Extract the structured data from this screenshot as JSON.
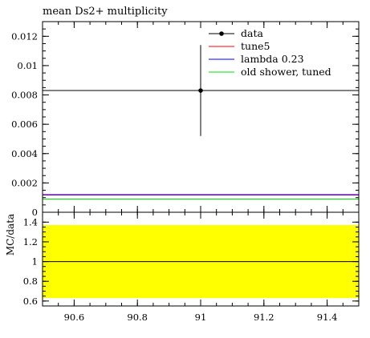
{
  "chart_data": {
    "type": "line",
    "title": "mean Ds2+ multiplicity",
    "x_range": [
      90.5,
      91.5
    ],
    "x_ticks": [
      "90.6",
      "90.8",
      "91",
      "91.2",
      "91.4"
    ],
    "x_tick_values": [
      90.6,
      90.8,
      91.0,
      91.2,
      91.4
    ],
    "main_panel": {
      "ylim": [
        0,
        0.013
      ],
      "y_ticks": [
        "0",
        "0.002",
        "0.004",
        "0.006",
        "0.008",
        "0.01",
        "0.012"
      ],
      "y_tick_values": [
        0,
        0.002,
        0.004,
        0.006,
        0.008,
        0.01,
        0.012
      ],
      "data": {
        "name": "data",
        "x": 91.0,
        "y": 0.0083,
        "y_err_low": 0.0031,
        "y_err_high": 0.0031,
        "color": "#000000"
      },
      "series": [
        {
          "name": "tune5",
          "value": 0.0012,
          "color": "#ff0000"
        },
        {
          "name": "lambda 0.23",
          "value": 0.0012,
          "color": "#0000ff"
        },
        {
          "name": "old shower, tuned",
          "value": 0.0009,
          "color": "#00dd00"
        }
      ],
      "legend_placement": "top-right"
    },
    "ratio_panel": {
      "ylabel": "MC/data",
      "ylim": [
        0.55,
        1.5
      ],
      "y_ticks": [
        "0.6",
        "0.8",
        "1",
        "1.2",
        "1.4"
      ],
      "y_tick_values": [
        0.6,
        0.8,
        1.0,
        1.2,
        1.4
      ],
      "band": {
        "low": 0.63,
        "high": 1.37,
        "color": "#ffff00"
      },
      "reference": 1.0
    }
  }
}
